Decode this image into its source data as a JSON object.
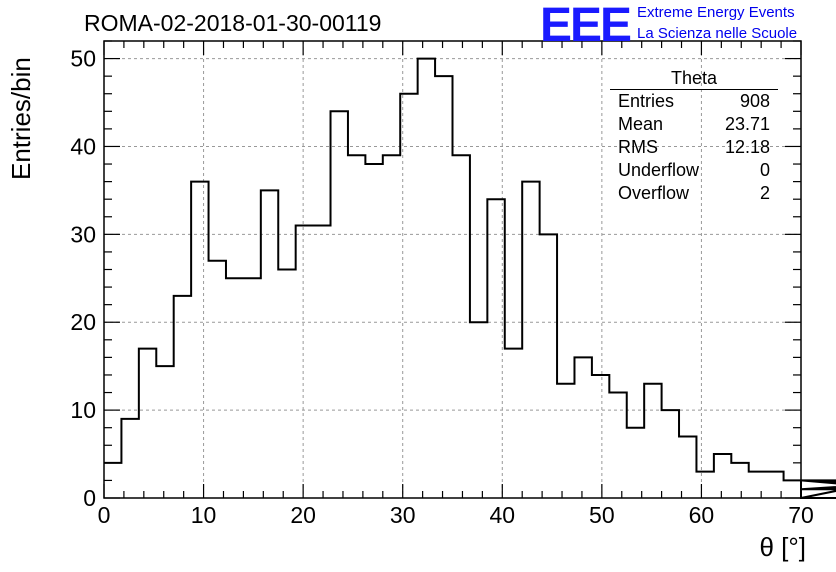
{
  "header": {
    "run_title": "ROMA-02-2018-01-30-00119",
    "logo_text": "EEE",
    "logo_line1": "Extreme Energy Events",
    "logo_line2": "La Scienza nelle Scuole"
  },
  "stats_box": {
    "title": "Theta",
    "rows": [
      {
        "label": "Entries",
        "value": "908"
      },
      {
        "label": "Mean",
        "value": "23.71"
      },
      {
        "label": "RMS",
        "value": "12.18"
      },
      {
        "label": "Underflow",
        "value": "0"
      },
      {
        "label": "Overflow",
        "value": "2"
      }
    ]
  },
  "colors": {
    "logo": "#1a1aff",
    "logo_text": "#0000ee",
    "line": "#000000",
    "grid": "#999999"
  },
  "chart_data": {
    "type": "histogram",
    "title": "ROMA-02-2018-01-30-00119",
    "xlabel": "θ [°]",
    "ylabel": "Entries/bin",
    "xlim": [
      0,
      70
    ],
    "ylim": [
      0,
      52
    ],
    "bin_width": 1.75,
    "xticks": [
      0,
      10,
      20,
      30,
      40,
      50,
      60,
      70
    ],
    "yticks": [
      0,
      10,
      20,
      30,
      40,
      50
    ],
    "grid": true,
    "values": [
      4,
      9,
      17,
      15,
      23,
      36,
      27,
      25,
      25,
      35,
      26,
      31,
      31,
      44,
      39,
      38,
      39,
      46,
      50,
      48,
      39,
      20,
      34,
      17,
      36,
      30,
      13,
      16,
      14,
      12,
      8,
      13,
      10,
      7,
      3,
      5,
      4,
      3,
      3,
      2,
      0,
      0,
      0,
      0,
      0,
      2,
      1,
      1,
      2,
      1,
      2
    ],
    "notes": "values are the per-bin counts in data units"
  }
}
